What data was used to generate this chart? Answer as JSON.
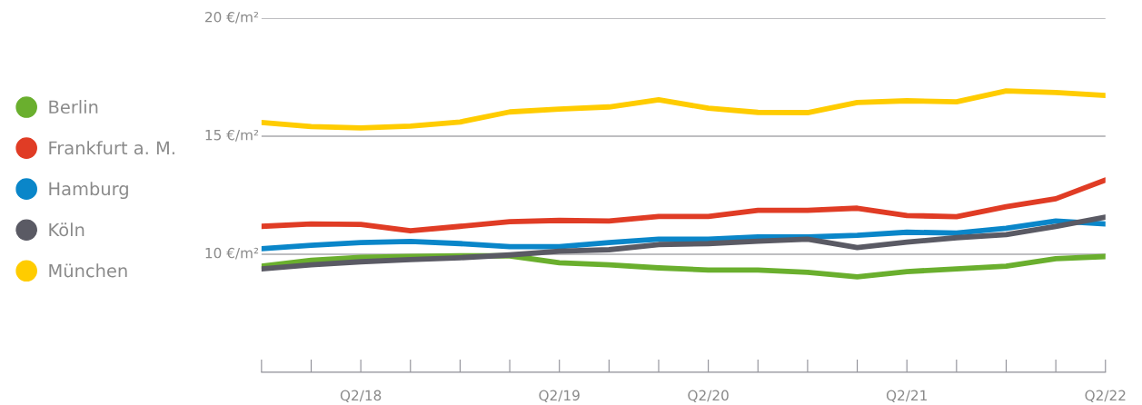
{
  "chart_data": {
    "type": "line",
    "categories": [
      null,
      null,
      "Q2/18",
      null,
      null,
      null,
      "Q2/19",
      null,
      null,
      "Q2/20",
      null,
      null,
      null,
      "Q2/21",
      null,
      null,
      null,
      "Q2/22"
    ],
    "ylim": [
      5,
      20
    ],
    "yticks": [
      {
        "value": 10,
        "label": "10 €/m²"
      },
      {
        "value": 15,
        "label": "15 €/m²"
      },
      {
        "value": 20,
        "label": "20 €/m²"
      }
    ],
    "grid": "y",
    "legend": "left",
    "marker": "none",
    "line_style": "solid",
    "series": [
      {
        "name": "Berlin",
        "color": "#6aaf2e",
        "values": [
          9.49,
          9.74,
          9.87,
          9.9,
          9.93,
          9.93,
          9.64,
          9.55,
          9.42,
          9.33,
          9.33,
          9.23,
          9.04,
          9.26,
          9.38,
          9.49,
          9.81,
          9.9
        ]
      },
      {
        "name": "Frankfurt a. M.",
        "color": "#e03c25",
        "values": [
          11.18,
          11.28,
          11.26,
          10.99,
          11.18,
          11.38,
          11.43,
          11.41,
          11.6,
          11.6,
          11.86,
          11.86,
          11.95,
          11.64,
          11.59,
          12.01,
          12.35,
          13.14
        ]
      },
      {
        "name": "Hamburg",
        "color": "#0a86c9",
        "values": [
          10.23,
          10.38,
          10.49,
          10.54,
          10.45,
          10.32,
          10.32,
          10.49,
          10.64,
          10.64,
          10.73,
          10.73,
          10.8,
          10.93,
          10.9,
          11.1,
          11.41,
          11.28
        ]
      },
      {
        "name": "Köln",
        "color": "#5a5a64",
        "values": [
          9.38,
          9.55,
          9.68,
          9.77,
          9.85,
          9.97,
          10.13,
          10.19,
          10.41,
          10.45,
          10.55,
          10.64,
          10.28,
          10.51,
          10.7,
          10.83,
          11.18,
          11.57
        ]
      },
      {
        "name": "München",
        "color": "#ffcc00",
        "values": [
          15.58,
          15.41,
          15.35,
          15.43,
          15.6,
          16.03,
          16.15,
          16.24,
          16.54,
          16.19,
          16.01,
          16.0,
          16.43,
          16.5,
          16.46,
          16.92,
          16.85,
          16.73
        ]
      }
    ]
  }
}
